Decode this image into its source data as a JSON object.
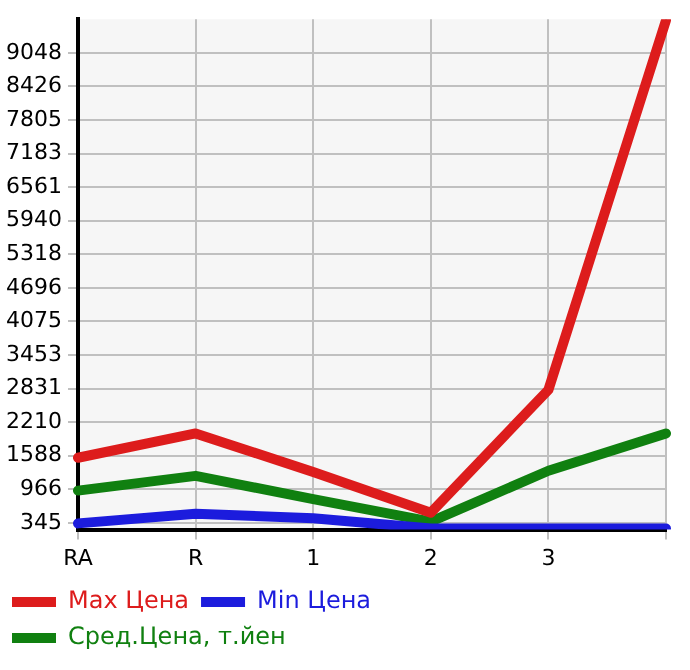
{
  "chart_data": {
    "type": "line",
    "categories": [
      "RA",
      "R",
      "1",
      "2",
      "3",
      null
    ],
    "series": [
      {
        "name": "Max Цена",
        "color": "#dd1c1c",
        "values": [
          1550,
          2000,
          1287,
          533,
          2807,
          9650
        ]
      },
      {
        "name": "Min Цена",
        "color": "#1c1cdd",
        "values": [
          335,
          515,
          430,
          240,
          240,
          240
        ]
      },
      {
        "name": "Сред.Цена, т.йен",
        "color": "#108010",
        "values": [
          942,
          1215,
          785,
          367,
          1309,
          2000
        ]
      }
    ],
    "ylim": [
      220,
      9670
    ],
    "yticks": [
      345,
      966,
      1588,
      2210,
      2831,
      3453,
      4075,
      4696,
      5318,
      5940,
      6561,
      7183,
      7805,
      8426,
      9048
    ],
    "grid": true,
    "legend": "bottom",
    "marker": "none",
    "line_style": "solid"
  }
}
